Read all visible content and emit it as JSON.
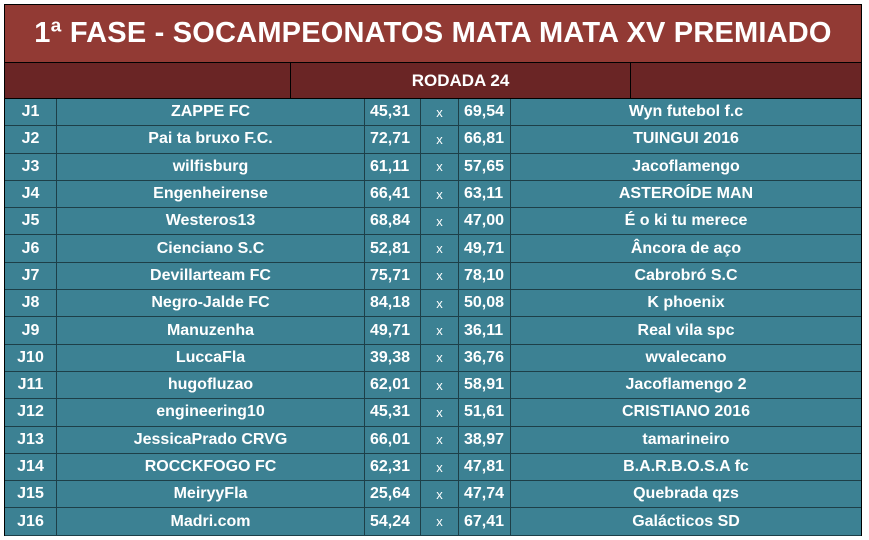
{
  "title": "1ª FASE - SOCAMPEONATOS MATA MATA XV PREMIADO",
  "round": "RODADA 24",
  "versus": "x",
  "matches": [
    {
      "code": "J1",
      "home": "ZAPPE FC",
      "home_score": "45,31",
      "away_score": "69,54",
      "away": "Wyn futebol f.c"
    },
    {
      "code": "J2",
      "home": "Pai ta bruxo F.C.",
      "home_score": "72,71",
      "away_score": "66,81",
      "away": "TUINGUI 2016"
    },
    {
      "code": "J3",
      "home": "wilfisburg",
      "home_score": "61,11",
      "away_score": "57,65",
      "away": "Jacoflamengo"
    },
    {
      "code": "J4",
      "home": "Engenheirense",
      "home_score": "66,41",
      "away_score": "63,11",
      "away": "ASTEROÍDE MAN"
    },
    {
      "code": "J5",
      "home": "Westeros13",
      "home_score": "68,84",
      "away_score": "47,00",
      "away": "É o ki tu merece"
    },
    {
      "code": "J6",
      "home": "Cienciano S.C",
      "home_score": "52,81",
      "away_score": "49,71",
      "away": "Âncora de aço"
    },
    {
      "code": "J7",
      "home": "Devillarteam FC",
      "home_score": "75,71",
      "away_score": "78,10",
      "away": "Cabrobró S.C"
    },
    {
      "code": "J8",
      "home": "Negro-Jalde FC",
      "home_score": "84,18",
      "away_score": "50,08",
      "away": "K phoenix"
    },
    {
      "code": "J9",
      "home": "Manuzenha",
      "home_score": "49,71",
      "away_score": "36,11",
      "away": "Real vila spc"
    },
    {
      "code": "J10",
      "home": "LuccaFla",
      "home_score": "39,38",
      "away_score": "36,76",
      "away": "wvalecano"
    },
    {
      "code": "J11",
      "home": "hugofluzao",
      "home_score": "62,01",
      "away_score": "58,91",
      "away": "Jacoflamengo 2"
    },
    {
      "code": "J12",
      "home": "engineering10",
      "home_score": "45,31",
      "away_score": "51,61",
      "away": "CRISTIANO 2016"
    },
    {
      "code": "J13",
      "home": "JessicaPrado CRVG",
      "home_score": "66,01",
      "away_score": "38,97",
      "away": "tamarineiro"
    },
    {
      "code": "J14",
      "home": "ROCCKFOGO FC",
      "home_score": "62,31",
      "away_score": "47,81",
      "away": "B.A.R.B.O.S.A fc"
    },
    {
      "code": "J15",
      "home": "MeiryyFla",
      "home_score": "25,64",
      "away_score": "47,74",
      "away": "Quebrada qzs"
    },
    {
      "code": "J16",
      "home": "Madri.com",
      "home_score": "54,24",
      "away_score": "67,41",
      "away": "Galácticos SD"
    }
  ]
}
